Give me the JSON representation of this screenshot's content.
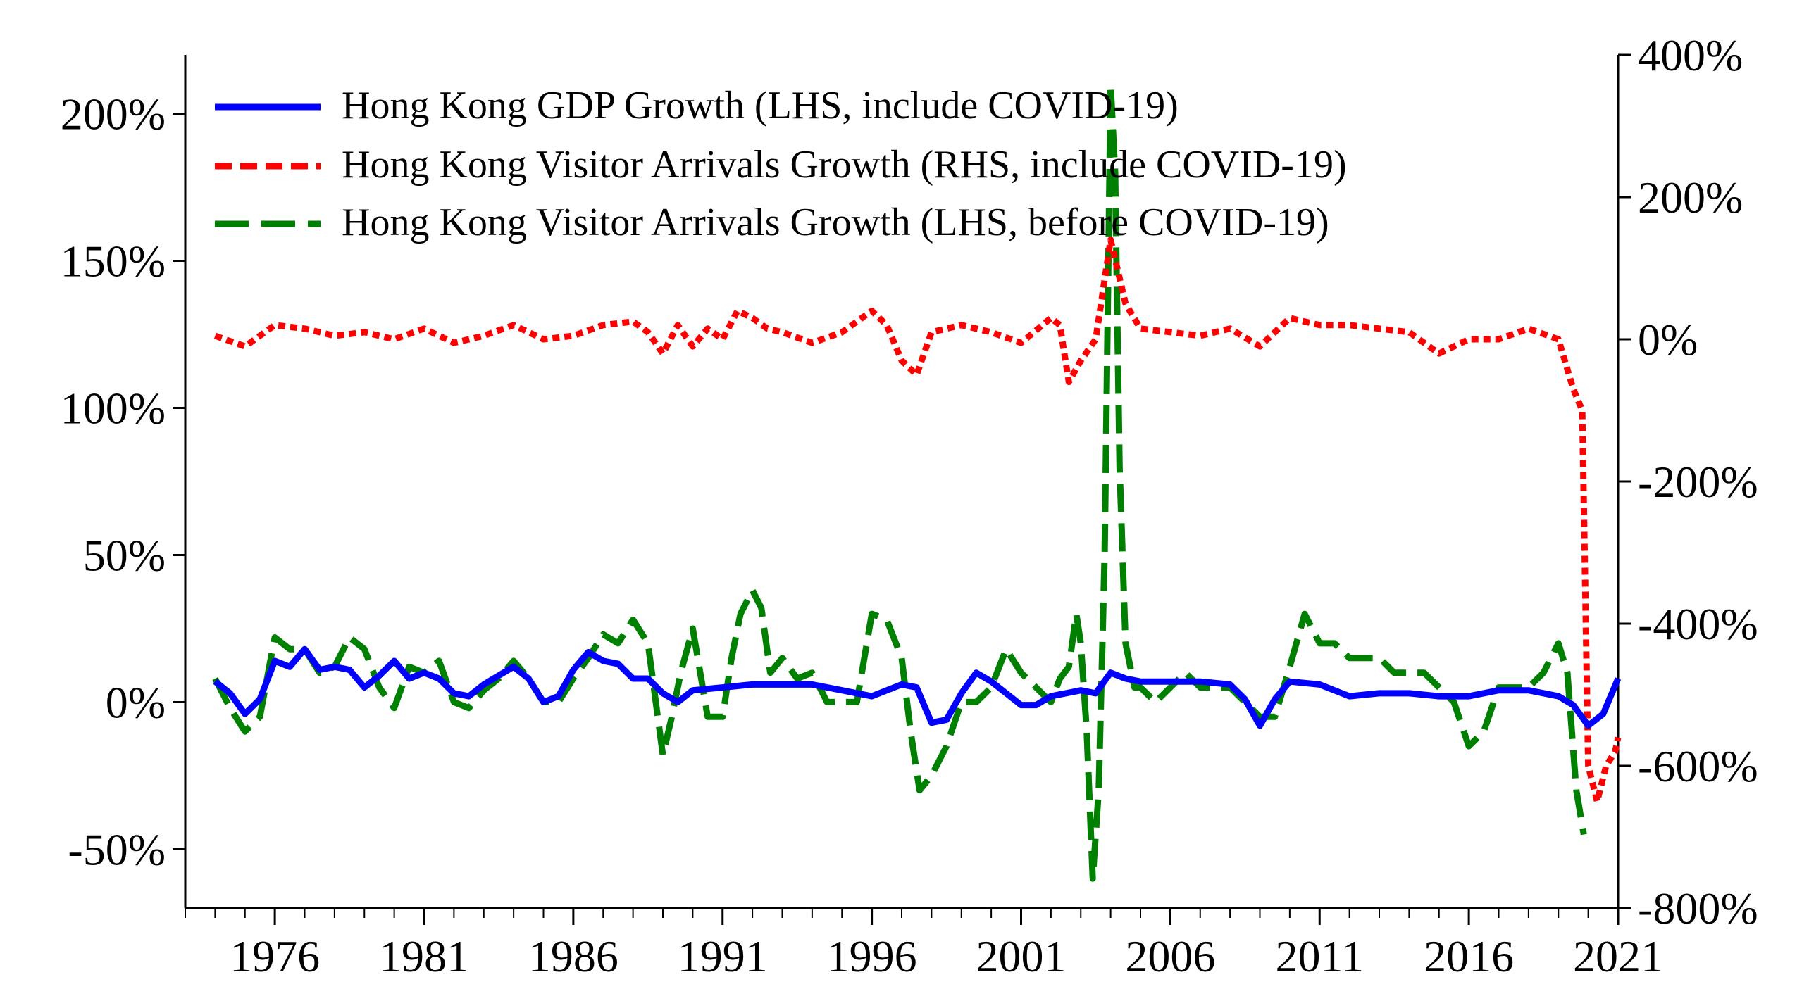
{
  "chart_data": {
    "type": "line",
    "title": "",
    "xlabel": "",
    "ylabel_left": "",
    "ylabel_right": "",
    "x_tick_labels": [
      "1976",
      "1981",
      "1986",
      "1991",
      "1996",
      "2001",
      "2006",
      "2011",
      "2016",
      "2021"
    ],
    "x_tick_values": [
      1976,
      1981,
      1986,
      1991,
      1996,
      2001,
      2006,
      2011,
      2016,
      2021
    ],
    "xlim": [
      1973,
      2021
    ],
    "y_left": {
      "ylim": [
        -70,
        220
      ],
      "ticks": [
        -50,
        0,
        50,
        100,
        150,
        200
      ],
      "tick_labels": [
        "-50%",
        "0%",
        "50%",
        "100%",
        "150%",
        "200%"
      ]
    },
    "y_right": {
      "ylim": [
        -800,
        400
      ],
      "ticks": [
        -800,
        -600,
        -400,
        -200,
        0,
        200,
        400
      ],
      "tick_labels": [
        "-800%",
        "-600%",
        "-400%",
        "-200%",
        "0%",
        "200%",
        "400%"
      ]
    },
    "legend_placement": "top-left",
    "colors": {
      "gdp": "#0000ff",
      "arrivals_rhs": "#ff0000",
      "arrivals_lhs": "#008000"
    },
    "series": [
      {
        "name": "Hong Kong GDP Growth (LHS, include COVID-19)",
        "axis": "left",
        "style": "solid",
        "x": [
          1974.0,
          1974.5,
          1975.0,
          1975.5,
          1976.0,
          1976.5,
          1977.0,
          1977.5,
          1978.0,
          1978.5,
          1979.0,
          1979.5,
          1980.0,
          1980.5,
          1981.0,
          1981.5,
          1982.0,
          1982.5,
          1983.0,
          1983.5,
          1984.0,
          1984.5,
          1985.0,
          1985.5,
          1986.0,
          1986.5,
          1987.0,
          1987.5,
          1988.0,
          1988.5,
          1989.0,
          1989.5,
          1990.0,
          1991.0,
          1992.0,
          1993.0,
          1994.0,
          1995.0,
          1996.0,
          1997.0,
          1997.5,
          1998.0,
          1998.5,
          1999.0,
          1999.5,
          2000.0,
          2000.5,
          2001.0,
          2001.5,
          2002.0,
          2003.0,
          2003.5,
          2004.0,
          2004.5,
          2005.0,
          2006.0,
          2007.0,
          2008.0,
          2008.5,
          2009.0,
          2009.5,
          2010.0,
          2011.0,
          2012.0,
          2013.0,
          2014.0,
          2015.0,
          2016.0,
          2017.0,
          2018.0,
          2019.0,
          2019.5,
          2020.0,
          2020.5,
          2021.0
        ],
        "values": [
          7,
          3,
          -4,
          1,
          14,
          12,
          18,
          11,
          12,
          11,
          5,
          9,
          14,
          8,
          10,
          8,
          3,
          2,
          6,
          9,
          12,
          8,
          0,
          2,
          11,
          17,
          14,
          13,
          8,
          8,
          3,
          0,
          4,
          5,
          6,
          6,
          6,
          4,
          2,
          6,
          5,
          -7,
          -6,
          3,
          10,
          7,
          3,
          -1,
          -1,
          2,
          4,
          3,
          10,
          8,
          7,
          7,
          7,
          6,
          1,
          -8,
          1,
          7,
          6,
          2,
          3,
          3,
          2,
          2,
          4,
          4,
          2,
          -1,
          -8,
          -4,
          8
        ]
      },
      {
        "name": "Hong Kong Visitor Arrivals Growth (RHS, include COVID-19)",
        "axis": "right",
        "style": "dotted",
        "x": [
          1974.0,
          1975.0,
          1976.0,
          1977.0,
          1978.0,
          1979.0,
          1980.0,
          1981.0,
          1982.0,
          1983.0,
          1984.0,
          1985.0,
          1986.0,
          1987.0,
          1988.0,
          1988.5,
          1989.0,
          1989.5,
          1990.0,
          1990.5,
          1991.0,
          1991.5,
          1992.0,
          1992.5,
          1993.0,
          1994.0,
          1995.0,
          1996.0,
          1996.5,
          1997.0,
          1997.5,
          1998.0,
          1998.5,
          1999.0,
          2000.0,
          2001.0,
          2002.0,
          2002.3,
          2002.6,
          2003.0,
          2003.5,
          2004.0,
          2004.5,
          2005.0,
          2006.0,
          2007.0,
          2008.0,
          2009.0,
          2010.0,
          2011.0,
          2012.0,
          2013.0,
          2014.0,
          2015.0,
          2016.0,
          2017.0,
          2018.0,
          2019.0,
          2019.5,
          2019.8,
          2020.0,
          2020.3,
          2020.6,
          2020.9,
          2021.0
        ],
        "values": [
          5,
          -10,
          20,
          15,
          5,
          10,
          0,
          15,
          -5,
          5,
          20,
          0,
          5,
          20,
          25,
          10,
          -20,
          20,
          -10,
          15,
          0,
          40,
          30,
          15,
          10,
          -5,
          10,
          40,
          20,
          -30,
          -50,
          10,
          15,
          20,
          10,
          -5,
          30,
          20,
          -60,
          -30,
          0,
          140,
          50,
          15,
          10,
          5,
          15,
          -10,
          30,
          20,
          20,
          15,
          10,
          -20,
          0,
          0,
          15,
          0,
          -70,
          -100,
          -600,
          -650,
          -600,
          -580,
          -560
        ]
      },
      {
        "name": "Hong Kong Visitor Arrivals Growth (LHS, before COVID-19)",
        "axis": "left",
        "style": "dashed",
        "x": [
          1974.0,
          1974.5,
          1975.0,
          1975.5,
          1976.0,
          1976.5,
          1977.0,
          1977.5,
          1978.0,
          1978.5,
          1979.0,
          1979.5,
          1980.0,
          1980.5,
          1981.0,
          1981.5,
          1982.0,
          1982.5,
          1983.0,
          1983.5,
          1984.0,
          1984.5,
          1985.0,
          1985.5,
          1986.0,
          1986.5,
          1987.0,
          1987.5,
          1988.0,
          1988.5,
          1989.0,
          1989.3,
          1989.6,
          1990.0,
          1990.5,
          1991.0,
          1991.3,
          1991.6,
          1992.0,
          1992.3,
          1992.6,
          1993.0,
          1993.5,
          1994.0,
          1994.5,
          1995.0,
          1995.5,
          1996.0,
          1996.5,
          1997.0,
          1997.3,
          1997.6,
          1998.0,
          1998.5,
          1999.0,
          1999.5,
          2000.0,
          2000.5,
          2001.0,
          2001.5,
          2002.0,
          2002.3,
          2002.6,
          2002.85,
          2003.0,
          2003.2,
          2003.4,
          2003.6,
          2003.8,
          2004.0,
          2004.15,
          2004.3,
          2004.5,
          2004.8,
          2005.0,
          2005.5,
          2006.0,
          2006.5,
          2007.0,
          2007.5,
          2008.0,
          2008.5,
          2009.0,
          2009.5,
          2010.0,
          2010.5,
          2011.0,
          2011.5,
          2012.0,
          2012.5,
          2013.0,
          2013.5,
          2014.0,
          2014.5,
          2015.0,
          2015.5,
          2016.0,
          2016.5,
          2017.0,
          2017.5,
          2018.0,
          2018.5,
          2019.0,
          2019.3,
          2019.6,
          2019.85
        ],
        "values": [
          8,
          -2,
          -10,
          -5,
          22,
          18,
          18,
          10,
          12,
          22,
          18,
          5,
          -2,
          12,
          10,
          14,
          0,
          -2,
          4,
          8,
          14,
          8,
          0,
          0,
          8,
          15,
          23,
          20,
          28,
          20,
          -18,
          -5,
          10,
          25,
          -5,
          -5,
          15,
          30,
          38,
          32,
          10,
          15,
          8,
          10,
          0,
          0,
          0,
          30,
          28,
          15,
          -10,
          -30,
          -25,
          -15,
          0,
          0,
          5,
          18,
          10,
          5,
          0,
          8,
          12,
          30,
          20,
          -10,
          -60,
          -30,
          50,
          210,
          180,
          80,
          20,
          5,
          5,
          0,
          5,
          10,
          5,
          5,
          5,
          0,
          -5,
          -5,
          12,
          30,
          20,
          20,
          15,
          15,
          15,
          10,
          10,
          10,
          5,
          0,
          -15,
          -10,
          5,
          5,
          5,
          10,
          20,
          10,
          -30,
          -45
        ]
      }
    ]
  }
}
